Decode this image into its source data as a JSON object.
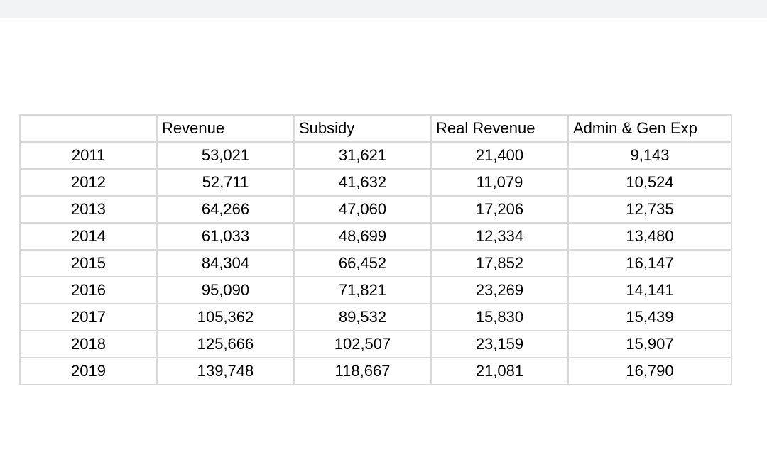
{
  "table": {
    "headers": [
      "",
      "Revenue",
      "Subsidy",
      "Real Revenue",
      "Admin & Gen Exp"
    ],
    "rows": [
      {
        "year": "2011",
        "revenue": "53,021",
        "subsidy": "31,621",
        "real_revenue": "21,400",
        "admin_gen_exp": "9,143"
      },
      {
        "year": "2012",
        "revenue": "52,711",
        "subsidy": "41,632",
        "real_revenue": "11,079",
        "admin_gen_exp": "10,524"
      },
      {
        "year": "2013",
        "revenue": "64,266",
        "subsidy": "47,060",
        "real_revenue": "17,206",
        "admin_gen_exp": "12,735"
      },
      {
        "year": "2014",
        "revenue": "61,033",
        "subsidy": "48,699",
        "real_revenue": "12,334",
        "admin_gen_exp": "13,480"
      },
      {
        "year": "2015",
        "revenue": "84,304",
        "subsidy": "66,452",
        "real_revenue": "17,852",
        "admin_gen_exp": "16,147"
      },
      {
        "year": "2016",
        "revenue": "95,090",
        "subsidy": "71,821",
        "real_revenue": "23,269",
        "admin_gen_exp": "14,141"
      },
      {
        "year": "2017",
        "revenue": "105,362",
        "subsidy": "89,532",
        "real_revenue": "15,830",
        "admin_gen_exp": "15,439"
      },
      {
        "year": "2018",
        "revenue": "125,666",
        "subsidy": "102,507",
        "real_revenue": "23,159",
        "admin_gen_exp": "15,907"
      },
      {
        "year": "2019",
        "revenue": "139,748",
        "subsidy": "118,667",
        "real_revenue": "21,081",
        "admin_gen_exp": "16,790"
      }
    ]
  },
  "colors": {
    "top_bar": "#f1f3f4",
    "grid_line": "#d9d9d9",
    "text": "#000000",
    "background": "#ffffff"
  }
}
